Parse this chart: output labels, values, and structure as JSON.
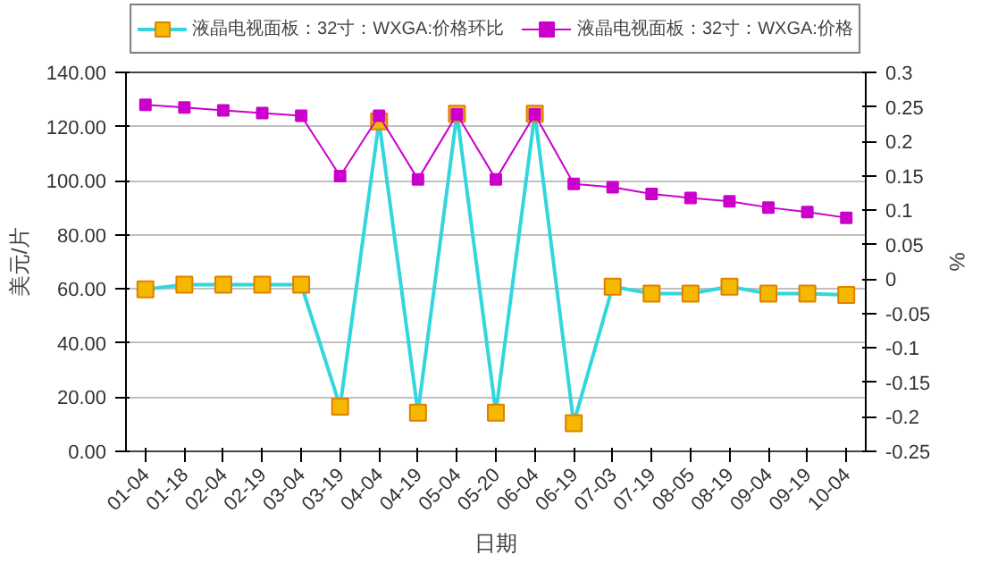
{
  "chart_data": {
    "type": "line",
    "xlabel": "日期",
    "ylabel": "美元/片",
    "y2label": "%",
    "categories": [
      "01-04",
      "01-18",
      "02-04",
      "02-19",
      "03-04",
      "03-19",
      "04-04",
      "04-19",
      "05-04",
      "05-20",
      "06-04",
      "06-19",
      "07-03",
      "07-19",
      "08-05",
      "08-19",
      "09-04",
      "09-19",
      "10-04"
    ],
    "series": [
      {
        "name": "液晶电视面板：32寸：WXGA:价格环比",
        "color": "#33d6dd",
        "axis": "y2",
        "values": [
          -0.015,
          -0.008,
          -0.008,
          -0.008,
          -0.008,
          -0.185,
          0.229,
          -0.194,
          0.24,
          -0.194,
          0.24,
          -0.209,
          -0.011,
          -0.021,
          -0.021,
          -0.011,
          -0.021,
          -0.021,
          -0.023
        ]
      },
      {
        "name": "液晶电视面板：32寸：WXGA:价格",
        "color": "#cc00cc",
        "values": [
          128,
          127,
          126,
          125,
          124,
          101.7,
          124,
          100.5,
          124.5,
          100.5,
          124.5,
          98.8,
          97.6,
          95.1,
          93.6,
          92.4,
          90.1,
          88.4,
          86.3
        ]
      }
    ],
    "ylim": [
      0,
      140
    ],
    "yticks": [
      {
        "value": 0,
        "label": "0.00"
      },
      {
        "value": 20,
        "label": "20.00"
      },
      {
        "value": 40,
        "label": "40.00"
      },
      {
        "value": 60,
        "label": "60.00"
      },
      {
        "value": 80,
        "label": "80.00"
      },
      {
        "value": 100,
        "label": "100.00"
      },
      {
        "value": 120,
        "label": "120.00"
      },
      {
        "value": 140,
        "label": "140.00"
      }
    ],
    "y2lim": [
      -0.25,
      0.3
    ],
    "y2ticks": [
      -0.25,
      -0.2,
      -0.15,
      -0.1,
      -0.05,
      0,
      0.05,
      0.1,
      0.15,
      0.2,
      0.25,
      0.3
    ],
    "grid": "y",
    "legend": "top",
    "marker": "square",
    "line_style": "solid"
  }
}
